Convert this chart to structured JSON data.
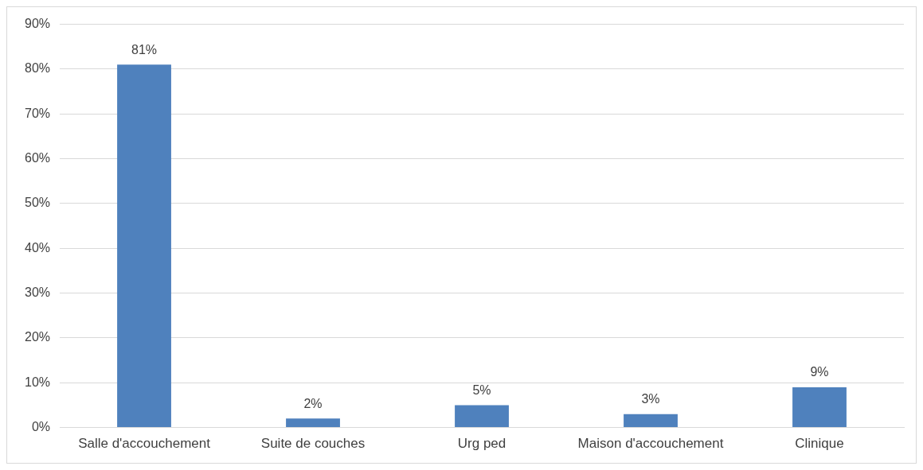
{
  "chart_data": {
    "type": "bar",
    "categories": [
      "Salle d'accouchement",
      "Suite de couches",
      "Urg ped",
      "Maison d'accouchement",
      "Clinique"
    ],
    "values": [
      81,
      2,
      5,
      3,
      9
    ],
    "value_labels": [
      "81%",
      "2%",
      "5%",
      "3%",
      "9%"
    ],
    "color": "#4f81bd",
    "ylim": [
      0,
      90
    ],
    "yticks": [
      {
        "value": 0,
        "label": "0%"
      },
      {
        "value": 10,
        "label": "10%"
      },
      {
        "value": 20,
        "label": "20%"
      },
      {
        "value": 30,
        "label": "30%"
      },
      {
        "value": 40,
        "label": "40%"
      },
      {
        "value": 50,
        "label": "50%"
      },
      {
        "value": 60,
        "label": "60%"
      },
      {
        "value": 70,
        "label": "70%"
      },
      {
        "value": 80,
        "label": "80%"
      },
      {
        "value": 90,
        "label": "90%"
      }
    ],
    "grid": "y"
  }
}
